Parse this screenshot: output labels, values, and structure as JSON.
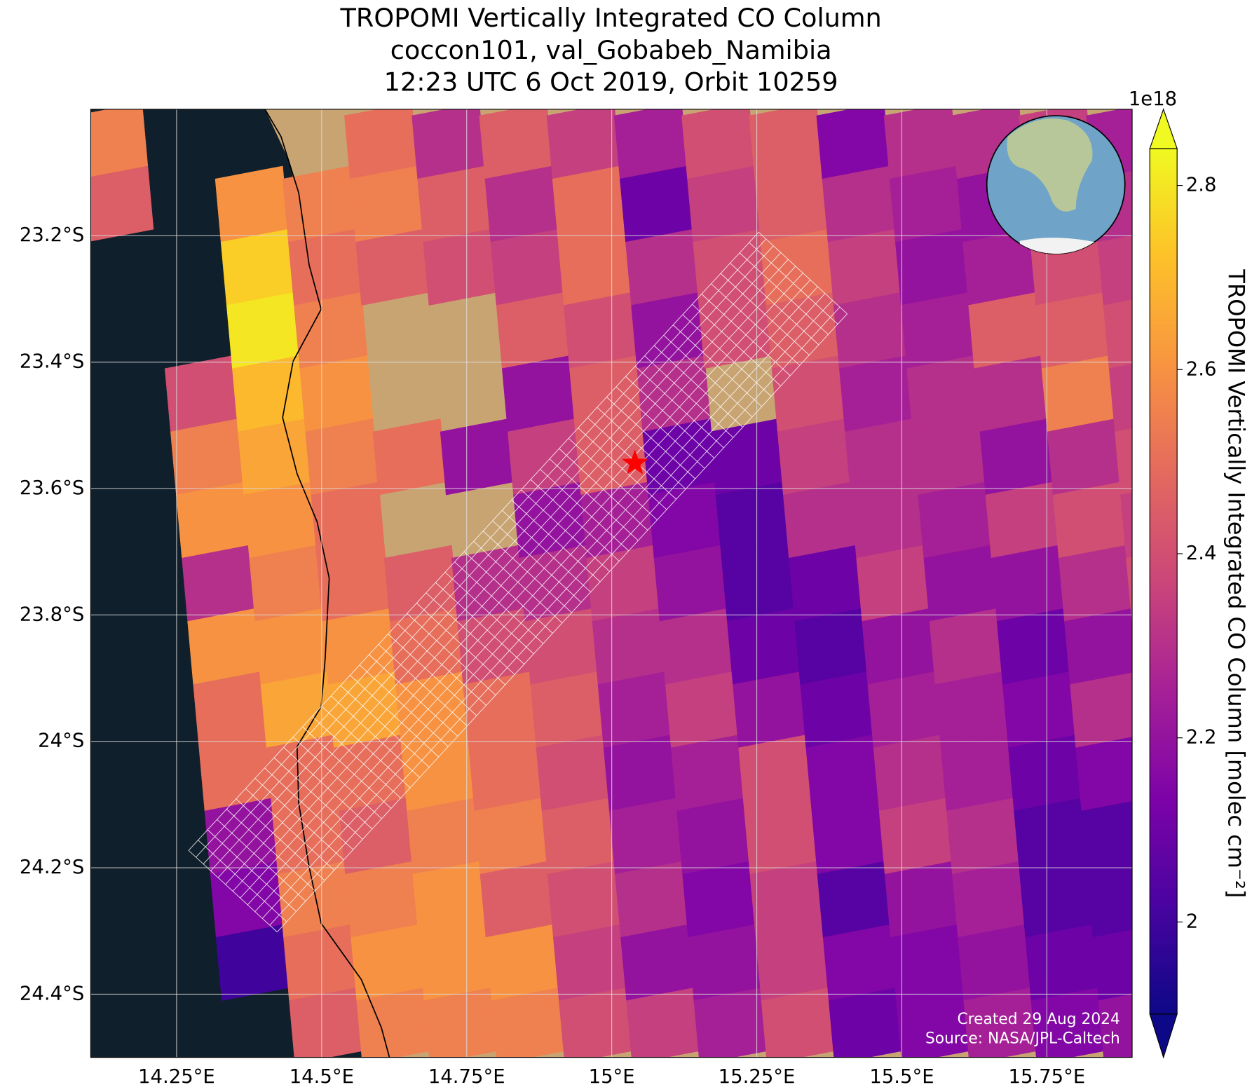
{
  "chart_data": {
    "type": "map",
    "title": [
      "TROPOMI Vertically Integrated CO Column",
      "coccon101, val_Gobabeb_Namibia",
      "12:23 UTC 6 Oct 2019, Orbit 10259"
    ],
    "xlim": [
      14.102,
      15.897
    ],
    "ylim": [
      -24.5,
      -23.0
    ],
    "xticks": [
      {
        "value": 14.25,
        "label": "14.25°E"
      },
      {
        "value": 14.5,
        "label": "14.5°E"
      },
      {
        "value": 14.75,
        "label": "14.75°E"
      },
      {
        "value": 15,
        "label": "15°E"
      },
      {
        "value": 15.25,
        "label": "15.25°E"
      },
      {
        "value": 15.5,
        "label": "15.5°E"
      },
      {
        "value": 15.75,
        "label": "15.75°E"
      }
    ],
    "yticks": [
      {
        "value": -23.2,
        "label": "23.2°S"
      },
      {
        "value": -23.4,
        "label": "23.4°S"
      },
      {
        "value": -23.6,
        "label": "23.6°S"
      },
      {
        "value": -23.8,
        "label": "23.8°S"
      },
      {
        "value": -24,
        "label": "24°S"
      },
      {
        "value": -24.2,
        "label": "24.2°S"
      },
      {
        "value": -24.4,
        "label": "24.4°S"
      }
    ],
    "grid": true,
    "colormap": "plasma",
    "clim": [
      1.9,
      2.84
    ],
    "colorbar_ticks": [
      2.0,
      2.2,
      2.4,
      2.6,
      2.8
    ],
    "colorbar_exponent": "1e18",
    "colorbar_label": "TROPOMI Vertically Integrated CO Column [molec cm⁻²]",
    "site": {
      "lon": 15.04,
      "lat": -23.56,
      "color": "#ff0000"
    },
    "tiles": [
      [
        2.55,
        2.45,
        null,
        null,
        null,
        null,
        null,
        null,
        null,
        null,
        null,
        null,
        null,
        null,
        null
      ],
      [
        null,
        null,
        null,
        null,
        2.4,
        2.55,
        2.6,
        2.3,
        2.6,
        2.5,
        2.5,
        2.2,
        2.15,
        2.0,
        null
      ],
      [
        null,
        2.6,
        2.75,
        2.8,
        2.7,
        2.65,
        2.6,
        2.55,
        2.6,
        2.65,
        2.5,
        2.5,
        2.55,
        2.5,
        2.45
      ],
      [
        null,
        2.55,
        2.5,
        2.55,
        2.6,
        2.55,
        2.5,
        2.5,
        2.6,
        2.65,
        2.5,
        2.45,
        2.55,
        2.6,
        2.55
      ],
      [
        2.5,
        2.55,
        2.45,
        null,
        null,
        2.5,
        null,
        2.45,
        2.5,
        2.6,
        2.6,
        2.55,
        2.6,
        2.6,
        2.55
      ],
      [
        2.3,
        2.45,
        2.4,
        null,
        null,
        2.2,
        null,
        2.3,
        2.4,
        2.5,
        2.5,
        2.55,
        2.45,
        2.6,
        2.55
      ],
      [
        2.45,
        2.3,
        2.35,
        2.45,
        2.2,
        2.35,
        2.2,
        2.3,
        2.4,
        2.45,
        2.4,
        2.45,
        2.4,
        2.35,
        2.4
      ],
      [
        2.35,
        2.5,
        2.5,
        2.4,
        2.45,
        2.45,
        2.25,
        2.35,
        2.3,
        2.25,
        2.2,
        2.25,
        2.3,
        2.2,
        2.35
      ],
      [
        2.25,
        2.1,
        2.3,
        2.2,
        2.3,
        2.1,
        2.15,
        2.2,
        2.3,
        2.35,
        2.25,
        2.2,
        2.15,
        2.2,
        2.25
      ],
      [
        2.4,
        2.35,
        2.4,
        2.4,
        null,
        2.1,
        2.05,
        2.05,
        2.1,
        2.2,
        2.4,
        2.4,
        2.35,
        2.35,
        2.4
      ],
      [
        2.45,
        2.45,
        2.5,
        2.45,
        2.4,
        2.35,
        2.3,
        2.1,
        2.05,
        2.1,
        2.15,
        2.15,
        2.05,
        2.15,
        2.1
      ],
      [
        2.15,
        2.3,
        2.35,
        2.3,
        2.25,
        2.3,
        2.3,
        2.35,
        2.2,
        2.25,
        2.3,
        2.35,
        2.2,
        2.15,
        2.15
      ],
      [
        2.3,
        2.25,
        2.2,
        2.25,
        2.3,
        2.3,
        2.25,
        2.2,
        2.3,
        2.25,
        2.25,
        2.3,
        2.25,
        2.2,
        2.25
      ],
      [
        2.3,
        2.2,
        2.25,
        2.45,
        2.3,
        2.2,
        2.35,
        2.2,
        2.1,
        2.15,
        2.1,
        2.05,
        2.05,
        2.1,
        2.15
      ],
      [
        2.35,
        2.3,
        2.4,
        2.45,
        2.55,
        2.3,
        2.4,
        2.3,
        2.2,
        2.3,
        2.15,
        2.05,
        2.05,
        2.1,
        2.2
      ],
      [
        2.25,
        2.3,
        2.35,
        2.4,
        2.35,
        2.4,
        2.35,
        2.4,
        2.3,
        2.25,
        2.2,
        2.3,
        2.15,
        2.2,
        2.2
      ],
      [
        2.35,
        2.3,
        2.2,
        2.3,
        2.45,
        2.4,
        2.35,
        2.3,
        2.25,
        2.2,
        2.3,
        2.2,
        2.15,
        2.1,
        2.2
      ]
    ],
    "credits": [
      "Created 29 Aug 2024",
      "Source: NASA/JPL-Caltech"
    ]
  }
}
